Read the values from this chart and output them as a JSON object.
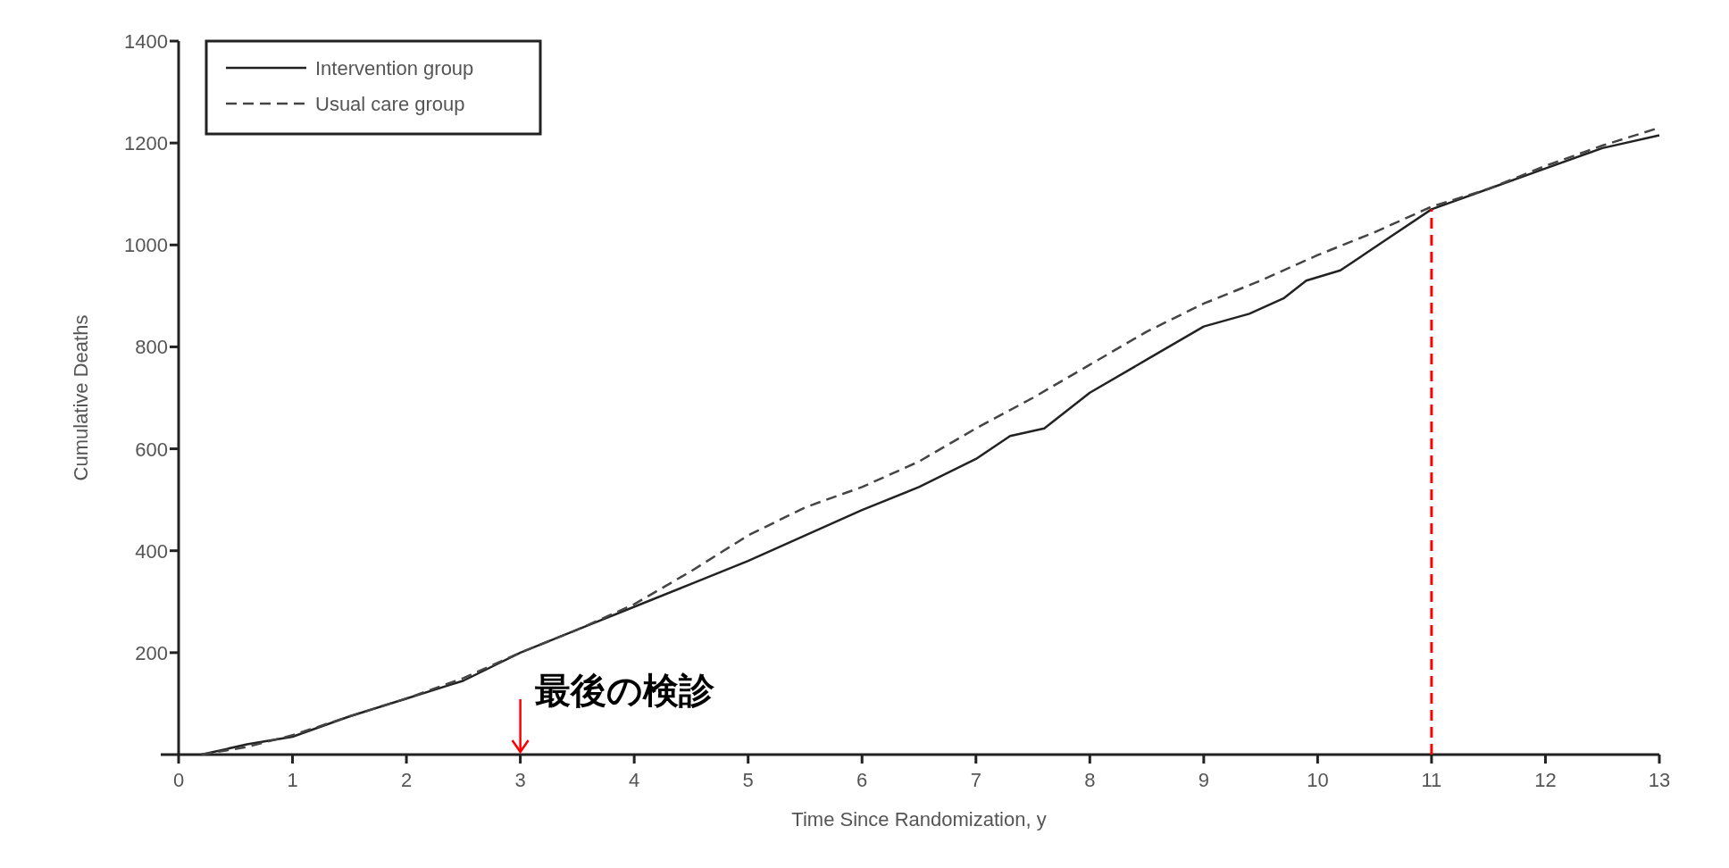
{
  "chart_data": {
    "type": "line",
    "xlabel": "Time Since Randomization, y",
    "ylabel": "Cumulative Deaths",
    "xlim": [
      0,
      13
    ],
    "ylim": [
      0,
      1400
    ],
    "xticks": [
      0,
      1,
      2,
      3,
      4,
      5,
      6,
      7,
      8,
      9,
      10,
      11,
      12,
      13
    ],
    "yticks": [
      200,
      400,
      600,
      800,
      1000,
      1200,
      1400
    ],
    "legend": "top left",
    "series": [
      {
        "name": "Intervention group",
        "color": "#222222",
        "line_style": "solid",
        "x": [
          0.2,
          0.6,
          1,
          1.5,
          2,
          2.5,
          3,
          3.5,
          4,
          4.5,
          5,
          5.5,
          6,
          6.5,
          7,
          7.3,
          7.6,
          8,
          8.5,
          9,
          9.4,
          9.7,
          9.9,
          10.2,
          10.6,
          11,
          11.5,
          12,
          12.5,
          13
        ],
        "values": [
          0,
          20,
          35,
          75,
          110,
          145,
          200,
          245,
          290,
          335,
          380,
          430,
          480,
          525,
          580,
          625,
          640,
          710,
          775,
          840,
          865,
          895,
          930,
          950,
          1010,
          1070,
          1110,
          1150,
          1190,
          1215
        ]
      },
      {
        "name": "Usual care group",
        "color": "#444444",
        "line_style": "dashed",
        "x": [
          0.2,
          0.6,
          1,
          1.5,
          2,
          2.5,
          3,
          3.5,
          4,
          4.5,
          5,
          5.5,
          6,
          6.5,
          7,
          7.5,
          8,
          8.5,
          9,
          9.5,
          10,
          10.5,
          11,
          11.5,
          12,
          12.5,
          13
        ],
        "values": [
          0,
          15,
          38,
          75,
          110,
          150,
          200,
          245,
          295,
          360,
          430,
          485,
          525,
          575,
          640,
          700,
          765,
          830,
          885,
          930,
          980,
          1025,
          1075,
          1110,
          1155,
          1195,
          1230
        ]
      }
    ],
    "ref_lines": [
      {
        "axis": "x",
        "value": 11,
        "color": "#ff0000",
        "line_style": "dashed"
      },
      {
        "axis": "x",
        "value": 3,
        "color": "#ff0000",
        "label": "最後の検診"
      }
    ]
  }
}
